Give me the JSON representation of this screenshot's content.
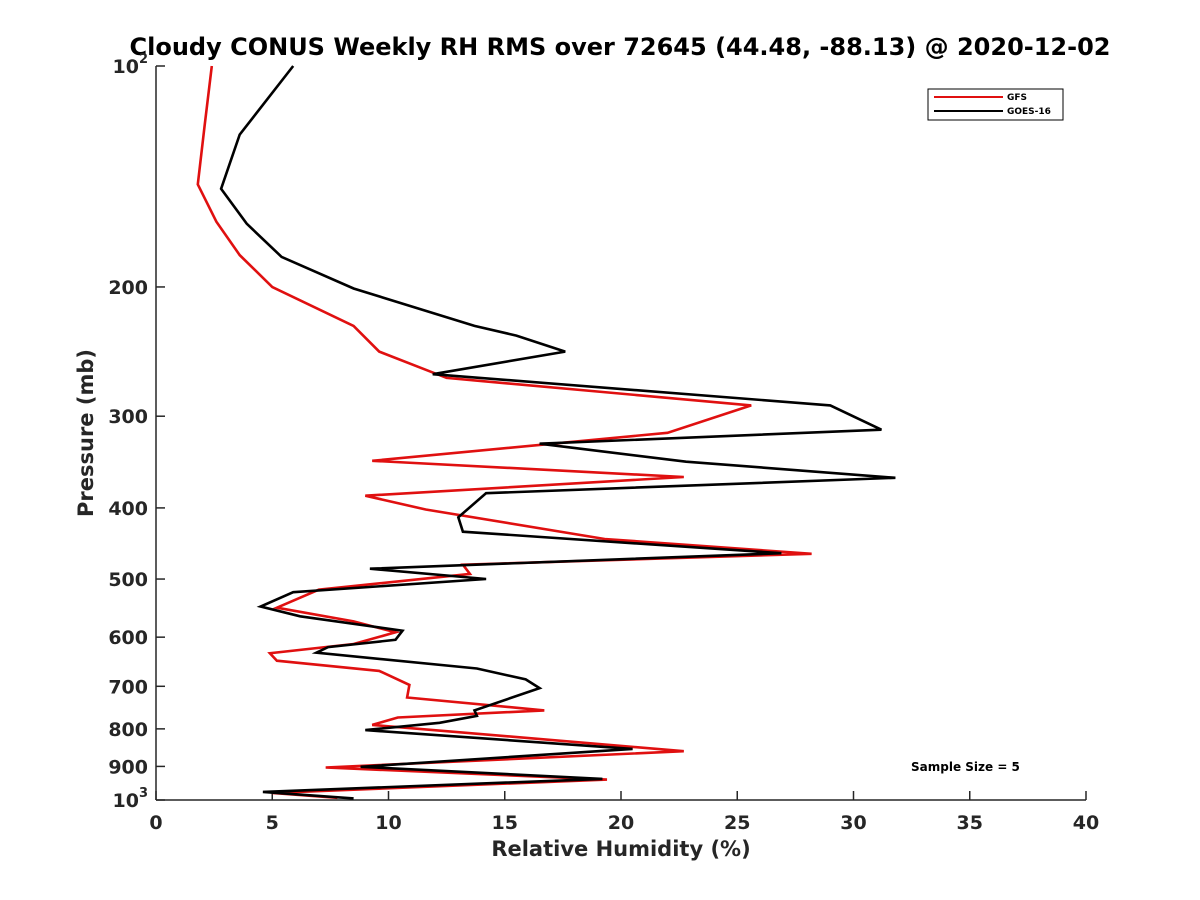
{
  "chart_data": {
    "type": "line",
    "title": "Cloudy CONUS Weekly RH RMS over 72645 (44.48, -88.13) @ 2020-12-02",
    "xlabel": "Relative Humidity (%)",
    "ylabel": "Pressure (mb)",
    "xlim": [
      0,
      40
    ],
    "ylim": [
      100,
      1000
    ],
    "yscale": "log",
    "y_reversed": true,
    "grid": false,
    "xticks": [
      "0",
      "5",
      "10",
      "15",
      "20",
      "25",
      "30",
      "35",
      "40"
    ],
    "yticks": [
      {
        "value": 100,
        "base": "10",
        "exp": "2"
      },
      {
        "value": 200,
        "label": "200"
      },
      {
        "value": 300,
        "label": "300"
      },
      {
        "value": 400,
        "label": "400"
      },
      {
        "value": 500,
        "label": "500"
      },
      {
        "value": 600,
        "label": "600"
      },
      {
        "value": 700,
        "label": "700"
      },
      {
        "value": 800,
        "label": "800"
      },
      {
        "value": 900,
        "label": "900"
      },
      {
        "value": 1000,
        "base": "10",
        "exp": "3"
      }
    ],
    "legend_position": "top-right",
    "series": [
      {
        "name": "GFS",
        "color": "#e01010",
        "x": [
          2.4,
          2.1,
          1.8,
          2.6,
          3.6,
          5.0,
          8.5,
          9.6,
          12.5,
          25.6,
          22.0,
          9.3,
          22.7,
          9.0,
          11.6,
          19.3,
          28.2,
          13.2,
          13.5,
          7.0,
          5.2,
          8.5,
          10.3,
          8.5,
          4.9,
          5.2,
          9.6,
          10.9,
          10.8,
          16.7,
          10.4,
          9.3,
          22.7,
          7.3,
          19.4,
          5.0,
          7.8
        ],
        "y": [
          100,
          120,
          145,
          163,
          181,
          200,
          226,
          245,
          266,
          290,
          316,
          345,
          363,
          385,
          402,
          441,
          462,
          478,
          492,
          517,
          547,
          571,
          591,
          613,
          631,
          646,
          667,
          697,
          725,
          755,
          772,
          790,
          858,
          903,
          938,
          978,
          993
        ]
      },
      {
        "name": "GOES-16",
        "color": "#000000",
        "x": [
          5.9,
          3.6,
          2.8,
          3.9,
          5.4,
          8.5,
          13.7,
          15.5,
          17.6,
          11.9,
          29.0,
          31.2,
          16.5,
          22.8,
          31.8,
          14.2,
          13.0,
          13.2,
          26.9,
          9.2,
          14.2,
          5.9,
          4.5,
          6.2,
          10.6,
          10.3,
          7.4,
          6.9,
          13.8,
          15.9,
          16.5,
          13.7,
          13.8,
          12.2,
          9.0,
          20.5,
          8.8,
          19.2,
          4.6,
          8.5
        ],
        "y": [
          100,
          124,
          147,
          164,
          182,
          201,
          226,
          233,
          245,
          263,
          290,
          313,
          327,
          346,
          364,
          382,
          412,
          431,
          461,
          484,
          500,
          521,
          545,
          562,
          588,
          605,
          619,
          630,
          662,
          685,
          704,
          755,
          768,
          785,
          803,
          852,
          901,
          936,
          975,
          995
        ]
      }
    ],
    "annotations": [
      "Sample Size = 5"
    ]
  }
}
